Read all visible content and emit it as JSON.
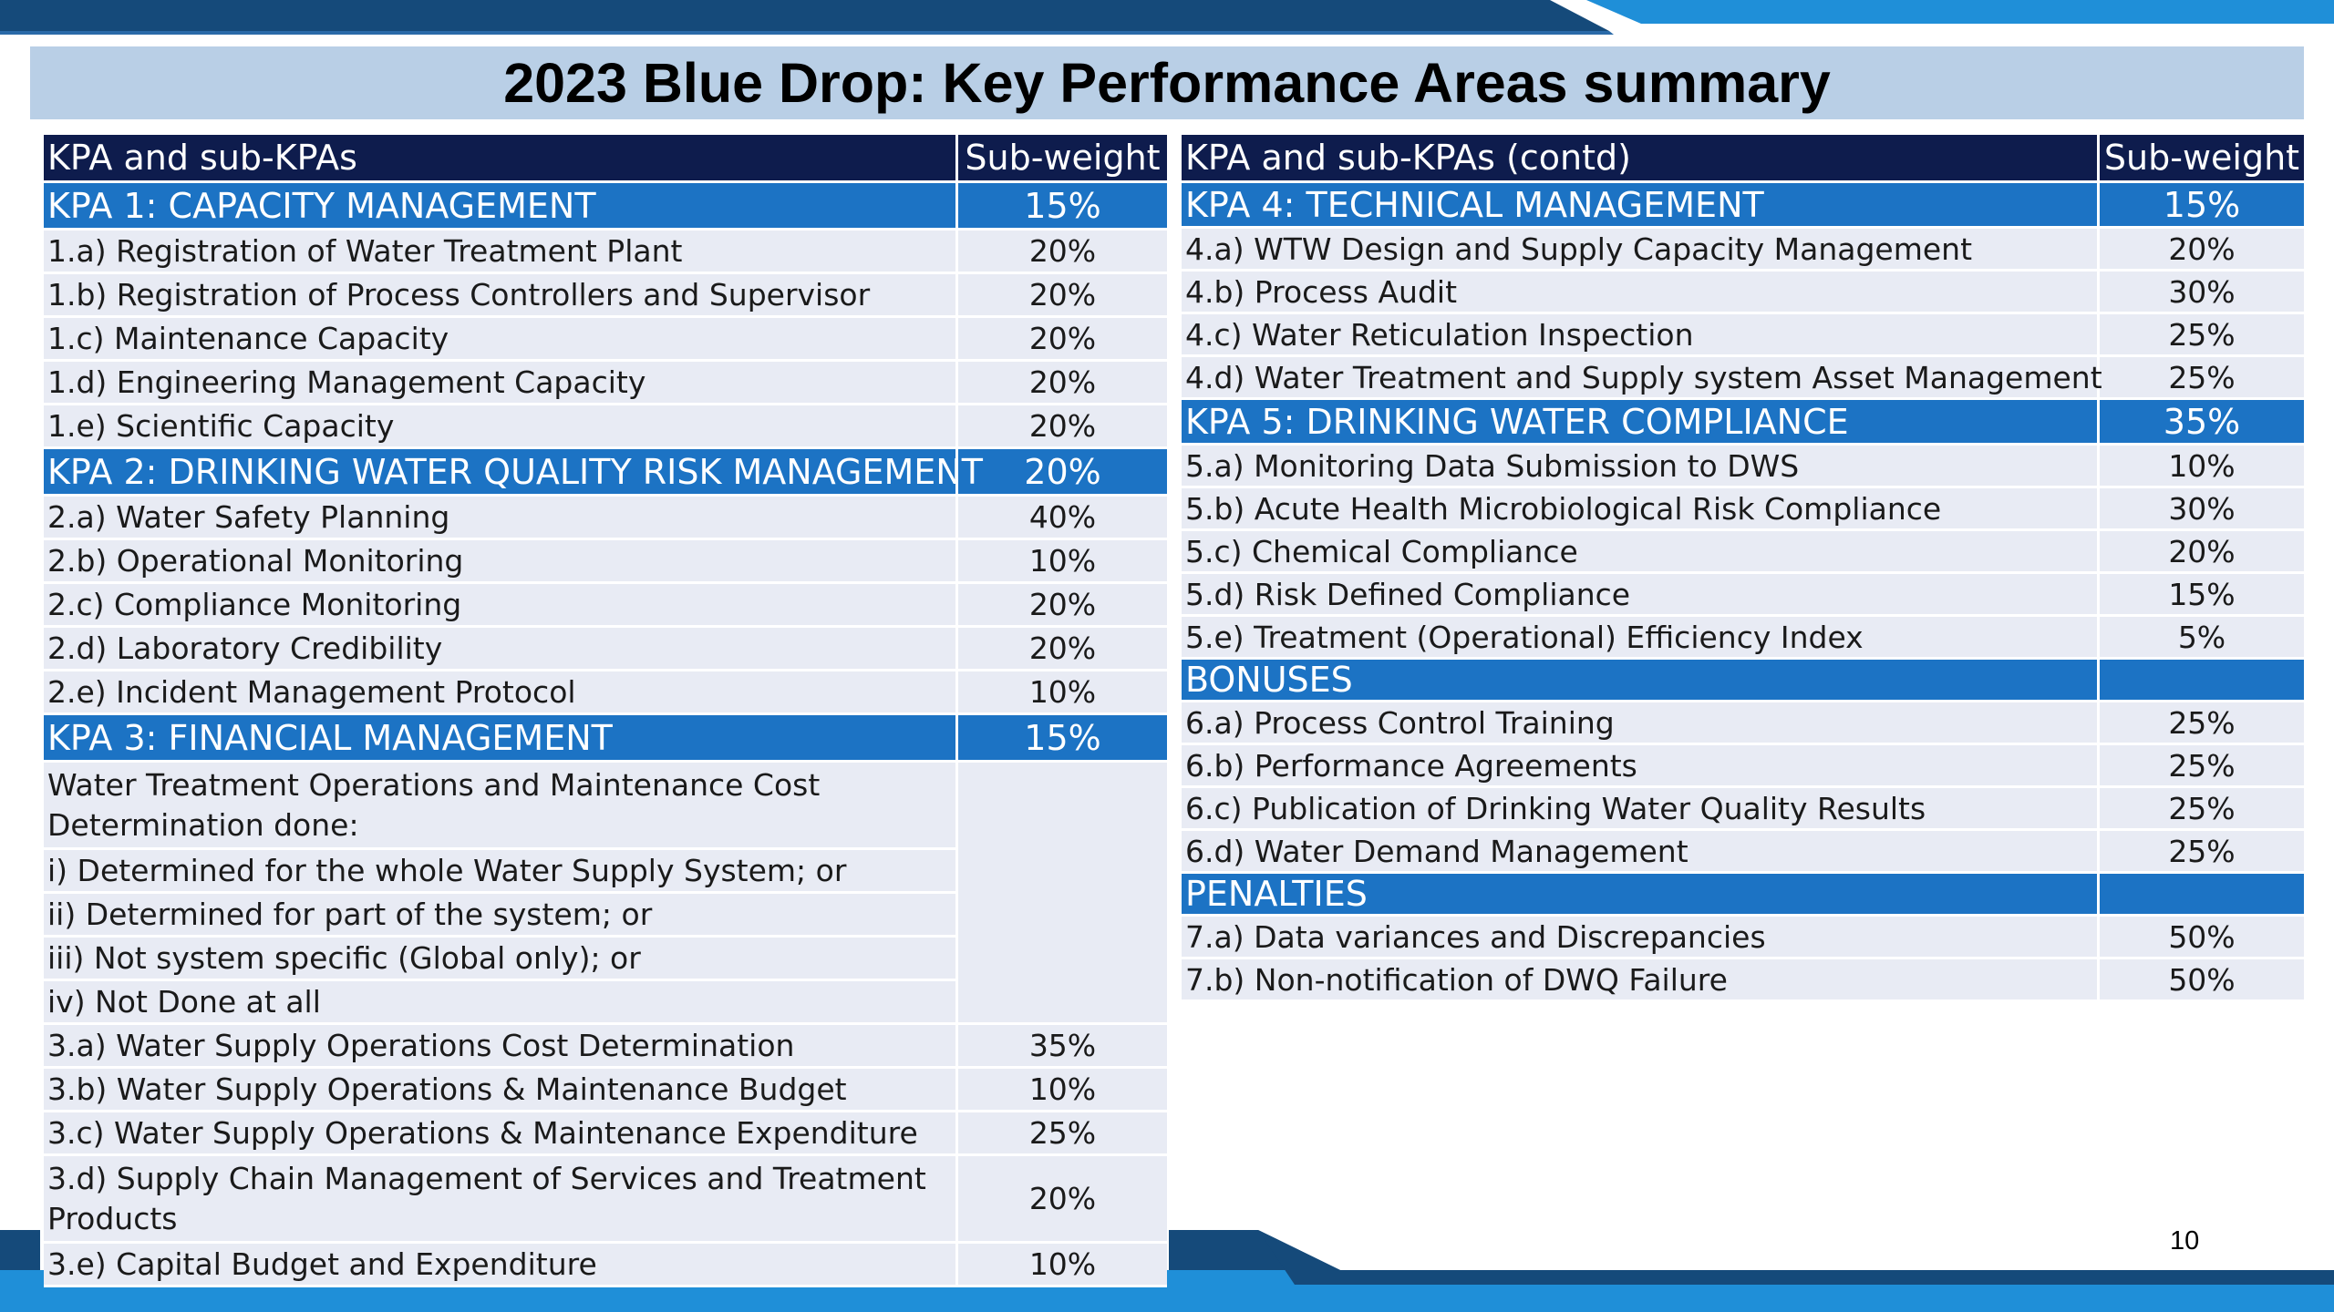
{
  "title": "2023 Blue Drop: Key Performance Areas summary",
  "page_number": "10",
  "colors": {
    "header_navy": "#0e1c4d",
    "kpa_blue": "#1c73c4",
    "row_bg": "#e8ebf4",
    "title_bg": "#b9cfe6",
    "band_dark": "#154a7a",
    "band_light": "#1f8fd8"
  },
  "left_table": {
    "header": {
      "label": "KPA and sub-KPAs",
      "weight": "Sub-weight"
    },
    "rows": [
      {
        "kind": "kpa",
        "label": "KPA 1: CAPACITY MANAGEMENT",
        "weight": "15%"
      },
      {
        "kind": "row",
        "label": "1.a) Registration of Water Treatment Plant",
        "weight": "20%"
      },
      {
        "kind": "row",
        "label": "1.b) Registration of Process Controllers and Supervisor",
        "weight": "20%"
      },
      {
        "kind": "row",
        "label": "1.c) Maintenance Capacity",
        "weight": "20%"
      },
      {
        "kind": "row",
        "label": "1.d) Engineering Management Capacity",
        "weight": "20%"
      },
      {
        "kind": "row",
        "label": "1.e) Scientific Capacity",
        "weight": "20%"
      },
      {
        "kind": "kpa",
        "label": "KPA 2: DRINKING WATER QUALITY RISK MANAGEMENT",
        "weight": "20%"
      },
      {
        "kind": "row",
        "label": "2.a) Water Safety Planning",
        "weight": "40%"
      },
      {
        "kind": "row",
        "label": "2.b) Operational Monitoring",
        "weight": "10%"
      },
      {
        "kind": "row",
        "label": "2.c) Compliance Monitoring",
        "weight": "20%"
      },
      {
        "kind": "row",
        "label": "2.d) Laboratory Credibility",
        "weight": "20%"
      },
      {
        "kind": "row",
        "label": "2.e) Incident Management Protocol",
        "weight": "10%"
      },
      {
        "kind": "kpa",
        "label": "KPA 3: FINANCIAL MANAGEMENT",
        "weight": "15%"
      },
      {
        "kind": "row",
        "label": "Water Treatment Operations and Maintenance Cost Determination done:",
        "weight": ""
      },
      {
        "kind": "row",
        "label": "i) Determined for the whole Water Supply System; or",
        "weight": ""
      },
      {
        "kind": "row",
        "label": "ii) Determined for part of the system; or",
        "weight": ""
      },
      {
        "kind": "row",
        "label": "iii) Not system specific (Global only); or",
        "weight": ""
      },
      {
        "kind": "row",
        "label": "iv) Not Done at all",
        "weight": ""
      },
      {
        "kind": "row",
        "label": "3.a) Water Supply Operations Cost Determination",
        "weight": "35%"
      },
      {
        "kind": "row",
        "label": "3.b) Water Supply Operations & Maintenance Budget",
        "weight": "10%"
      },
      {
        "kind": "row",
        "label": "3.c) Water Supply Operations & Maintenance Expenditure",
        "weight": "25%"
      },
      {
        "kind": "row",
        "label": "3.d) Supply Chain Management of Services and Treatment Products",
        "weight": "20%"
      },
      {
        "kind": "row",
        "label": "3.e) Capital Budget and Expenditure",
        "weight": "10%"
      }
    ]
  },
  "right_table": {
    "header": {
      "label": "KPA and sub-KPAs (contd)",
      "weight": "Sub-weight"
    },
    "rows": [
      {
        "kind": "kpa",
        "label": "KPA 4: TECHNICAL MANAGEMENT",
        "weight": "15%"
      },
      {
        "kind": "row",
        "label": "4.a) WTW Design and Supply Capacity Management",
        "weight": "20%"
      },
      {
        "kind": "row",
        "label": "4.b) Process Audit",
        "weight": "30%"
      },
      {
        "kind": "row",
        "label": "4.c) Water Reticulation Inspection",
        "weight": "25%"
      },
      {
        "kind": "row",
        "label": "4.d) Water Treatment and Supply system Asset Management",
        "weight": "25%"
      },
      {
        "kind": "kpa",
        "label": "KPA 5: DRINKING WATER COMPLIANCE",
        "weight": "35%"
      },
      {
        "kind": "row",
        "label": "5.a) Monitoring Data Submission to DWS",
        "weight": "10%"
      },
      {
        "kind": "row",
        "label": "5.b) Acute Health Microbiological Risk Compliance",
        "weight": "30%"
      },
      {
        "kind": "row",
        "label": "5.c) Chemical Compliance",
        "weight": "20%"
      },
      {
        "kind": "row",
        "label": "5.d) Risk Defined Compliance",
        "weight": "15%"
      },
      {
        "kind": "row",
        "label": "5.e) Treatment (Operational) Efficiency Index",
        "weight": "5%"
      },
      {
        "kind": "kpa",
        "label": "BONUSES",
        "weight": ""
      },
      {
        "kind": "row",
        "label": "6.a) Process Control Training",
        "weight": "25%"
      },
      {
        "kind": "row",
        "label": "6.b) Performance Agreements",
        "weight": "25%"
      },
      {
        "kind": "row",
        "label": "6.c) Publication of Drinking Water Quality Results",
        "weight": "25%"
      },
      {
        "kind": "row",
        "label": "6.d) Water Demand Management",
        "weight": "25%"
      },
      {
        "kind": "kpa",
        "label": "PENALTIES",
        "weight": ""
      },
      {
        "kind": "row",
        "label": "7.a) Data variances and Discrepancies",
        "weight": "50%"
      },
      {
        "kind": "row",
        "label": "7.b) Non-notification of DWQ Failure",
        "weight": "50%"
      }
    ]
  }
}
